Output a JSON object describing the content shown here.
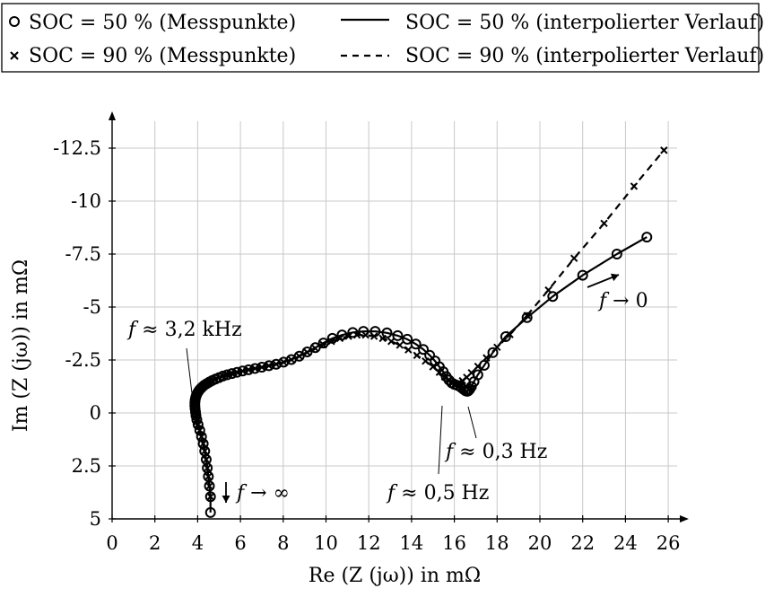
{
  "chart_data": {
    "type": "scatter",
    "xlabel": "Re (Z (jω)) in mΩ",
    "ylabel": "Im (Z (jω)) in mΩ",
    "xlim": [
      0,
      27
    ],
    "ylim": [
      5,
      -14
    ],
    "y_axis_inverted": true,
    "grid": true,
    "legend_position": "top",
    "x_ticks": [
      0,
      2,
      4,
      6,
      8,
      10,
      12,
      14,
      16,
      18,
      20,
      22,
      24,
      26
    ],
    "x_tick_labels": [
      "0",
      "2",
      "4",
      "6",
      "8",
      "10",
      "12",
      "14",
      "16",
      "18",
      "20",
      "22",
      "24",
      "26"
    ],
    "y_ticks": [
      5,
      2.5,
      0,
      -2.5,
      -5,
      -7.5,
      -10,
      -12.5
    ],
    "y_tick_labels": [
      "5",
      "2.5",
      "0",
      "-2.5",
      "-5",
      "-7.5",
      "-10",
      "-12.5"
    ],
    "legend": [
      {
        "id": "soc50-points",
        "label": "SOC = 50 % (Messpunkte)",
        "marker": "circle"
      },
      {
        "id": "soc50-line",
        "label": "SOC = 50 % (interpolierter Verlauf)",
        "line": "solid"
      },
      {
        "id": "soc90-points",
        "label": "SOC = 90 % (Messpunkte)",
        "marker": "cross"
      },
      {
        "id": "soc90-line",
        "label": "SOC = 90 % (interpolierter Verlauf)",
        "line": "dashed"
      }
    ],
    "series": [
      {
        "name": "SOC = 50 %",
        "marker": "circle",
        "line": "solid",
        "x": [
          4.6,
          4.6,
          4.55,
          4.5,
          4.45,
          4.4,
          4.33,
          4.26,
          4.18,
          4.1,
          4.02,
          3.96,
          3.92,
          3.9,
          3.88,
          3.87,
          3.87,
          3.88,
          3.9,
          3.93,
          3.97,
          4.02,
          4.08,
          4.15,
          4.23,
          4.32,
          4.43,
          4.55,
          4.68,
          4.83,
          5.0,
          5.18,
          5.38,
          5.6,
          5.84,
          6.1,
          6.38,
          6.68,
          7.0,
          7.33,
          7.67,
          8.02,
          8.38,
          8.75,
          9.12,
          9.5,
          9.88,
          10.3,
          10.75,
          11.25,
          11.75,
          12.3,
          12.85,
          13.35,
          13.8,
          14.2,
          14.55,
          14.85,
          15.1,
          15.3,
          15.48,
          15.62,
          15.75,
          15.88,
          16.0,
          16.15,
          16.3,
          16.42,
          16.52,
          16.6,
          16.66,
          16.72,
          16.8,
          16.92,
          17.1,
          17.4,
          17.8,
          18.4,
          19.4,
          20.6,
          22.0,
          23.6,
          25.0
        ],
        "y": [
          4.7,
          3.95,
          3.45,
          3.0,
          2.6,
          2.2,
          1.8,
          1.45,
          1.12,
          0.82,
          0.55,
          0.32,
          0.12,
          -0.05,
          -0.2,
          -0.34,
          -0.47,
          -0.59,
          -0.7,
          -0.8,
          -0.9,
          -0.99,
          -1.08,
          -1.16,
          -1.24,
          -1.32,
          -1.39,
          -1.46,
          -1.53,
          -1.6,
          -1.67,
          -1.74,
          -1.8,
          -1.86,
          -1.92,
          -1.98,
          -2.04,
          -2.1,
          -2.16,
          -2.23,
          -2.3,
          -2.4,
          -2.52,
          -2.68,
          -2.88,
          -3.08,
          -3.3,
          -3.52,
          -3.68,
          -3.8,
          -3.85,
          -3.85,
          -3.78,
          -3.65,
          -3.48,
          -3.25,
          -3.0,
          -2.72,
          -2.45,
          -2.18,
          -1.95,
          -1.72,
          -1.55,
          -1.42,
          -1.35,
          -1.3,
          -1.22,
          -1.12,
          -1.05,
          -1.02,
          -1.05,
          -1.12,
          -1.25,
          -1.48,
          -1.8,
          -2.25,
          -2.85,
          -3.6,
          -4.5,
          -5.5,
          -6.5,
          -7.5,
          -8.3
        ]
      },
      {
        "name": "SOC = 90 %",
        "marker": "cross",
        "line": "dashed",
        "x": [
          4.6,
          4.55,
          4.5,
          4.45,
          4.4,
          4.33,
          4.26,
          4.18,
          4.1,
          4.02,
          3.96,
          3.92,
          3.9,
          3.88,
          3.87,
          3.87,
          3.88,
          3.9,
          3.93,
          3.97,
          4.02,
          4.08,
          4.15,
          4.23,
          4.32,
          4.43,
          4.55,
          4.68,
          4.83,
          5.0,
          5.18,
          5.38,
          5.6,
          5.84,
          6.1,
          6.38,
          6.68,
          7.0,
          7.33,
          7.67,
          8.02,
          8.38,
          8.75,
          9.12,
          9.5,
          9.88,
          10.25,
          10.65,
          11.05,
          11.45,
          11.85,
          12.25,
          12.65,
          13.05,
          13.45,
          13.85,
          14.25,
          14.65,
          15.0,
          15.3,
          15.55,
          15.75,
          15.92,
          16.05,
          16.2,
          16.38,
          16.58,
          16.8,
          17.1,
          17.5,
          18.0,
          18.6,
          19.4,
          20.4,
          21.6,
          23.0,
          24.4,
          25.8
        ],
        "y": [
          3.95,
          3.45,
          3.0,
          2.6,
          2.2,
          1.8,
          1.45,
          1.12,
          0.82,
          0.55,
          0.32,
          0.12,
          -0.05,
          -0.2,
          -0.34,
          -0.47,
          -0.59,
          -0.7,
          -0.8,
          -0.9,
          -0.99,
          -1.08,
          -1.16,
          -1.24,
          -1.32,
          -1.39,
          -1.46,
          -1.53,
          -1.6,
          -1.67,
          -1.74,
          -1.8,
          -1.86,
          -1.92,
          -1.98,
          -2.04,
          -2.1,
          -2.16,
          -2.23,
          -2.3,
          -2.4,
          -2.52,
          -2.68,
          -2.86,
          -3.05,
          -3.22,
          -3.38,
          -3.52,
          -3.62,
          -3.68,
          -3.68,
          -3.62,
          -3.52,
          -3.38,
          -3.2,
          -2.98,
          -2.72,
          -2.45,
          -2.18,
          -1.92,
          -1.7,
          -1.52,
          -1.42,
          -1.38,
          -1.42,
          -1.52,
          -1.68,
          -1.9,
          -2.2,
          -2.6,
          -3.1,
          -3.7,
          -4.6,
          -5.8,
          -7.3,
          -8.95,
          -10.7,
          -12.4
        ]
      }
    ],
    "annotations": [
      {
        "id": "ann-32khz",
        "var": "f",
        "rest": " ≈ 3,2 kHz",
        "x": 3.9,
        "y": -0.5,
        "dir": "left"
      },
      {
        "id": "ann-inf",
        "var": "f",
        "rest": " → ∞",
        "x": 5.35,
        "y": 4.0,
        "dir": "down-arrow"
      },
      {
        "id": "ann-05hz",
        "var": "f",
        "rest": " ≈ 0,5 Hz",
        "x": 15.75,
        "y": -0.35,
        "dir": "below"
      },
      {
        "id": "ann-03hz",
        "var": "f",
        "rest": " ≈ 0,3 Hz",
        "x": 16.5,
        "y": 0.5,
        "dir": "below"
      },
      {
        "id": "ann-zero",
        "var": "f",
        "rest": " → 0",
        "x": 22.6,
        "y": -5.8,
        "dir": "right-arrow"
      }
    ]
  }
}
